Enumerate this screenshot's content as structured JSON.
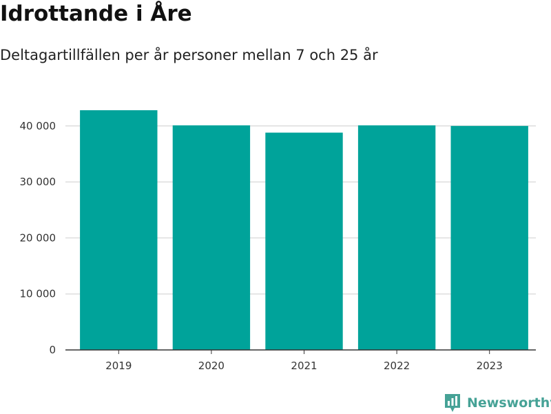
{
  "header": {
    "title": "Idrottande i Åre",
    "subtitle": "Deltagartillfällen per år personer mellan 7 och 25 år"
  },
  "brand": {
    "name": "Newsworthy",
    "icon": "newsworthy-logo-icon",
    "color": "#46a296"
  },
  "chart_data": {
    "type": "bar",
    "categories": [
      "2019",
      "2020",
      "2021",
      "2022",
      "2023"
    ],
    "values": [
      42800,
      40100,
      38800,
      40100,
      40000
    ],
    "ylim": [
      0,
      46000
    ],
    "yticks": [
      0,
      10000,
      20000,
      30000,
      40000
    ],
    "ytick_labels": [
      "0",
      "10 000",
      "20 000",
      "30 000",
      "40 000"
    ],
    "grid": true,
    "legend": "none",
    "bar_color": "#00a39a",
    "grid_color": "#dddddd",
    "axis_color": "#333333"
  }
}
